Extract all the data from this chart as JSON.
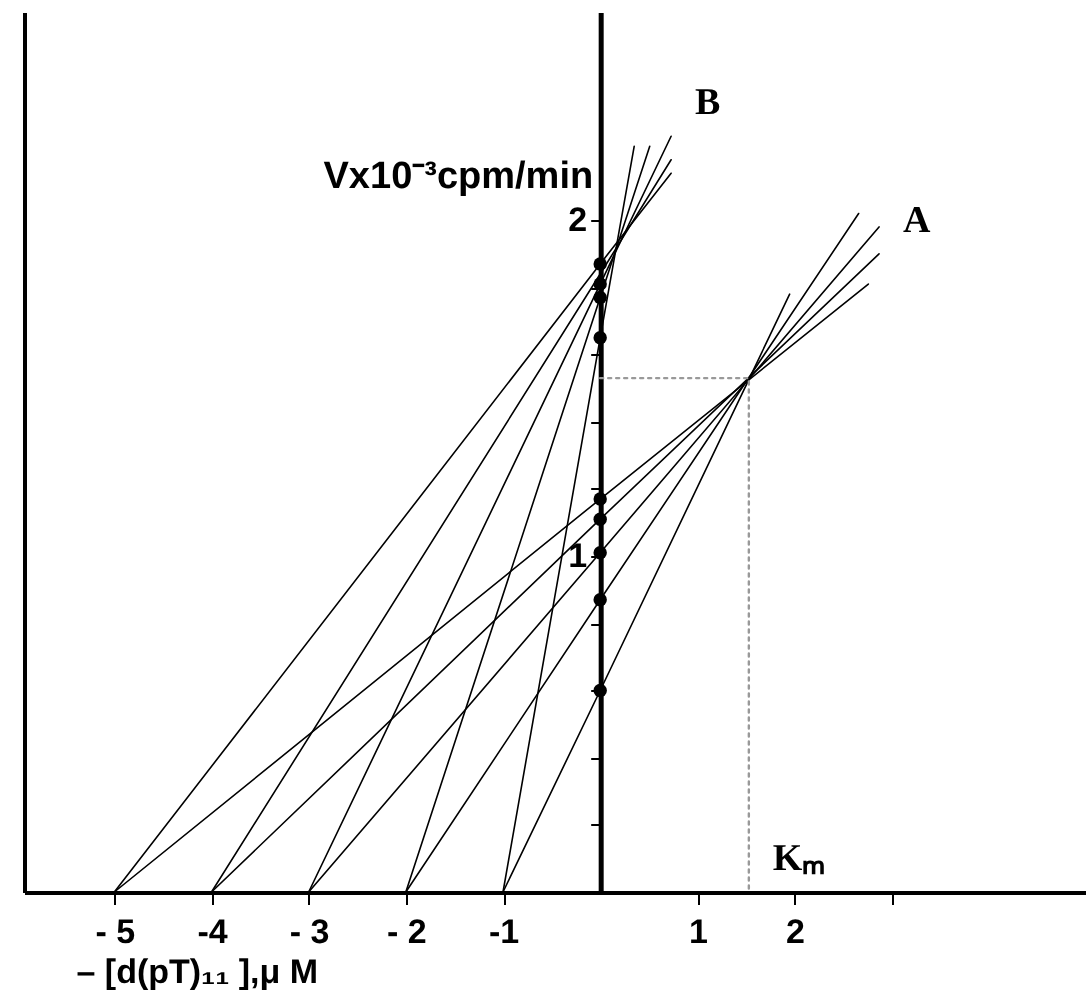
{
  "chart_data": {
    "type": "line",
    "xlabel": "– [d(pT)₁₁ ],μ M",
    "ylabel": "Vx10⁻³cpm/min",
    "xlim": [
      -5.93,
      5.0
    ],
    "ylim": [
      0,
      2.62
    ],
    "xticks": [
      {
        "value": -5,
        "label": "- 5"
      },
      {
        "value": -4,
        "label": "-4"
      },
      {
        "value": -3,
        "label": "- 3"
      },
      {
        "value": -2,
        "label": "- 2"
      },
      {
        "value": -1,
        "label": "-1"
      },
      1,
      2,
      {
        "value": 3,
        "label": null
      }
    ],
    "yticks": [
      {
        "value": 0.2,
        "label": null
      },
      {
        "value": 0.4,
        "label": null
      },
      {
        "value": 0.6,
        "label": null
      },
      {
        "value": 0.8,
        "label": null
      },
      1,
      {
        "value": 1.2,
        "label": null
      },
      {
        "value": 1.4,
        "label": null
      },
      {
        "value": 1.6,
        "label": null
      },
      {
        "value": 1.8,
        "label": null
      },
      2
    ],
    "grid": false,
    "marker": "none",
    "line_style": "solid",
    "series": [
      {
        "color": "#000000",
        "x": [
          -5,
          0,
          2.76
        ],
        "values": [
          0,
          1.17,
          1.81
        ]
      },
      {
        "color": "#000000",
        "x": [
          -4,
          0,
          2.87
        ],
        "values": [
          0,
          1.11,
          1.9
        ]
      },
      {
        "color": "#000000",
        "x": [
          -3,
          0,
          2.87
        ],
        "values": [
          0,
          1.01,
          1.98
        ]
      },
      {
        "color": "#000000",
        "x": [
          -2,
          0,
          2.66
        ],
        "values": [
          0,
          0.87,
          2.02
        ]
      },
      {
        "color": "#000000",
        "x": [
          -1,
          0,
          1.95
        ],
        "values": [
          0,
          0.6,
          1.78
        ]
      },
      {
        "color": "#000000",
        "x": [
          -5,
          0,
          0.73
        ],
        "values": [
          0,
          1.87,
          2.14
        ]
      },
      {
        "color": "#000000",
        "x": [
          -4,
          0,
          0.73
        ],
        "values": [
          0,
          1.84,
          2.18
        ]
      },
      {
        "color": "#000000",
        "x": [
          -3,
          0,
          0.73
        ],
        "values": [
          0,
          1.81,
          2.25
        ]
      },
      {
        "color": "#000000",
        "x": [
          -2,
          0,
          0.51
        ],
        "values": [
          0,
          1.77,
          2.22
        ]
      },
      {
        "color": "#000000",
        "x": [
          -1,
          0,
          0.35
        ],
        "values": [
          0,
          1.65,
          2.22
        ]
      },
      {
        "type": "line",
        "line_style": "dotted",
        "color": "#999999",
        "x": [
          0,
          1.53,
          1.53
        ],
        "values": [
          1.53,
          1.53,
          0
        ]
      },
      {
        "type": "scatter",
        "marker": "circle",
        "color": "#000000",
        "x": [
          0,
          0,
          0,
          0,
          0,
          0,
          0,
          0,
          0
        ],
        "values": [
          1.17,
          1.11,
          1.01,
          0.87,
          0.6,
          1.87,
          1.81,
          1.77,
          1.65
        ]
      }
    ],
    "annotations": [
      {
        "text": "A",
        "x": 2.87,
        "y": 1.9
      },
      {
        "text": "B",
        "x": 0.73,
        "y": 2.25
      },
      {
        "text": "Kₘ",
        "x": 1.53,
        "y": 0
      }
    ]
  }
}
